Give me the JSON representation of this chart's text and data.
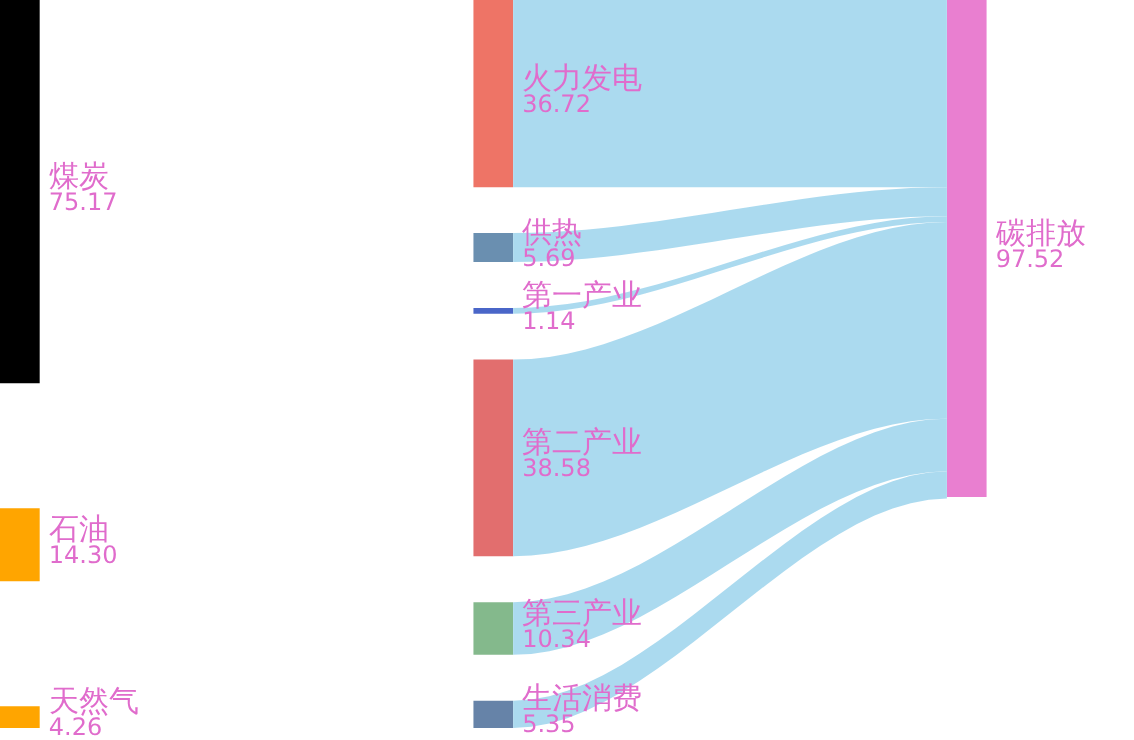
{
  "chart_data": {
    "type": "other",
    "categories": [
      "煤炭",
      "石油",
      "天然气",
      "火力发电",
      "供热",
      "第一产业",
      "第二产业",
      "第三产业",
      "生活消费",
      "碳排放"
    ],
    "series": [
      {
        "values": [
          75.17,
          14.3,
          4.26,
          null,
          null,
          null,
          null,
          null,
          null,
          null
        ],
        "value_labels": [
          "75.17",
          "14.30",
          "4.26",
          null,
          null,
          null,
          null,
          null,
          null,
          null
        ]
      },
      {
        "values": [
          null,
          null,
          null,
          36.72,
          5.69,
          1.14,
          38.58,
          10.34,
          5.35,
          null
        ],
        "value_labels": [
          null,
          null,
          null,
          "36.72",
          "5.69",
          "1.14",
          "38.58",
          "10.34",
          "5.35",
          null
        ]
      },
      {
        "values": [
          null,
          null,
          null,
          null,
          null,
          null,
          null,
          null,
          null,
          97.52
        ],
        "value_labels": [
          null,
          null,
          null,
          null,
          null,
          null,
          null,
          null,
          null,
          "97.52"
        ]
      }
    ],
    "colors": [
      "#000000",
      "#ffa500",
      "#ffa500",
      "#ee7466",
      "#6a8fb0",
      "#4a66c8",
      "#e26e6e",
      "#84b98c",
      "#6683a8",
      "#e97fd0"
    ]
  }
}
